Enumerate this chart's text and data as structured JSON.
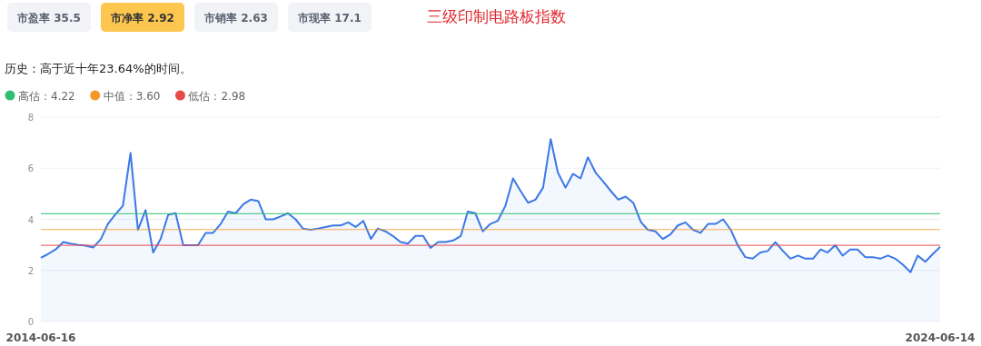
{
  "chart_data": {
    "type": "area",
    "title": "三级印制电路板指数",
    "subtitle": "历史：高于近十年23.64%的时间。",
    "annotations": [
      "市盈率 35.5",
      "市净率 2.92",
      "市销率 2.63",
      "市现率 17.1"
    ],
    "x": [
      "2014-06-16",
      "2014-07-15",
      "2014-08-15",
      "2014-09-15",
      "2014-10-15",
      "2014-11-15",
      "2014-12-15",
      "2015-01-15",
      "2015-02-15",
      "2015-03-15",
      "2015-04-15",
      "2015-05-15",
      "2015-06-15",
      "2015-07-15",
      "2015-08-15",
      "2015-09-15",
      "2015-10-15",
      "2015-11-15",
      "2015-12-15",
      "2016-01-15",
      "2016-02-15",
      "2016-03-15",
      "2016-04-15",
      "2016-05-15",
      "2016-06-15",
      "2016-07-15",
      "2016-08-15",
      "2016-09-15",
      "2016-10-15",
      "2016-11-15",
      "2016-12-15",
      "2017-01-15",
      "2017-02-15",
      "2017-03-15",
      "2017-04-15",
      "2017-05-15",
      "2017-06-15",
      "2017-07-15",
      "2017-08-15",
      "2017-09-15",
      "2017-10-15",
      "2017-11-15",
      "2017-12-15",
      "2018-01-15",
      "2018-02-15",
      "2018-03-15",
      "2018-04-15",
      "2018-05-15",
      "2018-06-15",
      "2018-07-15",
      "2018-08-15",
      "2018-09-15",
      "2018-10-15",
      "2018-11-15",
      "2018-12-15",
      "2019-01-15",
      "2019-02-15",
      "2019-03-15",
      "2019-04-15",
      "2019-05-15",
      "2019-06-15",
      "2019-07-15",
      "2019-08-15",
      "2019-09-15",
      "2019-10-15",
      "2019-11-15",
      "2019-12-15",
      "2020-01-15",
      "2020-02-15",
      "2020-03-15",
      "2020-04-15",
      "2020-05-15",
      "2020-06-15",
      "2020-07-15",
      "2020-08-15",
      "2020-09-15",
      "2020-10-15",
      "2020-11-15",
      "2020-12-15",
      "2021-01-15",
      "2021-02-15",
      "2021-03-15",
      "2021-04-15",
      "2021-05-15",
      "2021-06-15",
      "2021-07-15",
      "2021-08-15",
      "2021-09-15",
      "2021-10-15",
      "2021-11-15",
      "2021-12-15",
      "2022-01-15",
      "2022-02-15",
      "2022-03-15",
      "2022-04-15",
      "2022-05-15",
      "2022-06-15",
      "2022-07-15",
      "2022-08-15",
      "2022-09-15",
      "2022-10-15",
      "2022-11-15",
      "2022-12-15",
      "2023-01-15",
      "2023-02-15",
      "2023-03-15",
      "2023-04-15",
      "2023-05-15",
      "2023-06-15",
      "2023-07-15",
      "2023-08-15",
      "2023-09-15",
      "2023-10-15",
      "2023-11-15",
      "2023-12-15",
      "2024-01-15",
      "2024-02-15",
      "2024-03-15",
      "2024-04-15",
      "2024-05-15",
      "2024-06-14"
    ],
    "series": [
      {
        "color": "#3b78e7",
        "values": [
          2.49,
          2.64,
          2.82,
          3.11,
          3.05,
          3.0,
          2.97,
          2.9,
          3.23,
          3.82,
          4.2,
          4.53,
          6.6,
          3.59,
          4.36,
          2.7,
          3.23,
          4.18,
          4.24,
          2.99,
          2.99,
          2.99,
          3.47,
          3.47,
          3.82,
          4.3,
          4.24,
          4.59,
          4.77,
          4.71,
          4.0,
          4.0,
          4.12,
          4.24,
          4.0,
          3.64,
          3.59,
          3.64,
          3.7,
          3.76,
          3.76,
          3.88,
          3.7,
          3.94,
          3.23,
          3.64,
          3.53,
          3.35,
          3.11,
          3.05,
          3.35,
          3.35,
          2.88,
          3.11,
          3.11,
          3.17,
          3.35,
          4.3,
          4.24,
          3.53,
          3.82,
          3.94,
          4.53,
          5.6,
          5.12,
          4.65,
          4.77,
          5.24,
          7.14,
          5.83,
          5.24,
          5.78,
          5.6,
          6.43,
          5.83,
          5.48,
          5.12,
          4.77,
          4.89,
          4.65,
          3.9,
          3.59,
          3.53,
          3.23,
          3.41,
          3.76,
          3.88,
          3.59,
          3.47,
          3.82,
          3.82,
          4.0,
          3.59,
          2.99,
          2.52,
          2.46,
          2.7,
          2.76,
          3.11,
          2.76,
          2.46,
          2.58,
          2.46,
          2.46,
          2.82,
          2.7,
          2.99,
          2.58,
          2.82,
          2.82,
          2.52,
          2.52,
          2.46,
          2.58,
          2.46,
          2.22,
          1.93,
          2.58,
          2.34,
          2.64,
          2.92
        ]
      }
    ],
    "xlim": [
      "2014-06-16",
      "2024-06-14"
    ],
    "xticks": [
      "2014-06-16",
      "2024-06-14"
    ],
    "ylim": [
      0,
      8
    ],
    "yticks": [
      0,
      2,
      4,
      6,
      8
    ],
    "grid": "y",
    "legend": "top left",
    "ref_lines": [
      {
        "axis": "y",
        "value": 4.22,
        "label": "高估：4.22",
        "color": "#2fbf71"
      },
      {
        "axis": "y",
        "value": 3.6,
        "label": "中值：3.60",
        "color": "#f5962a"
      },
      {
        "axis": "y",
        "value": 2.98,
        "label": "低估：2.98",
        "color": "#e84a4a"
      }
    ]
  }
}
